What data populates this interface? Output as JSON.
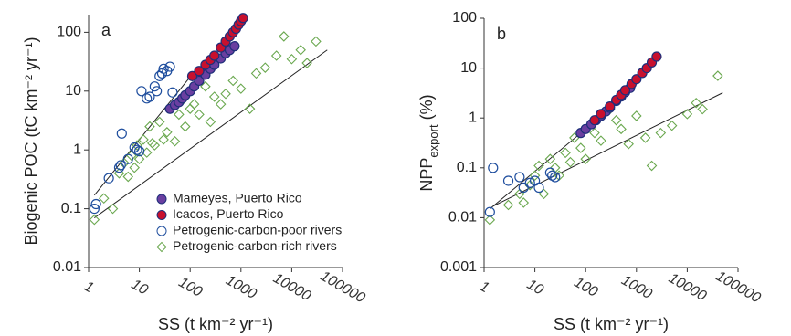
{
  "chart_data": [
    {
      "type": "scatter",
      "panel_label": "a",
      "xlabel": "SS (t km⁻² yr⁻¹)",
      "ylabel": [
        "Biogenic POC (tC km⁻² yr⁻¹)"
      ],
      "xscale": "log",
      "yscale": "log",
      "xlim": [
        1,
        100000
      ],
      "ylim": [
        0.01,
        200
      ],
      "xticks": [
        1,
        10,
        100,
        1000,
        10000,
        100000
      ],
      "yticks": [
        0.01,
        0.1,
        1,
        10,
        100
      ],
      "legend_loc": "lower right",
      "series": [
        {
          "name": "Mameyes, Puerto Rico",
          "color": "#6a3fa0",
          "edge": "#1f2f7a",
          "marker": "filled-circle",
          "x": [
            40,
            50,
            60,
            70,
            80,
            100,
            120,
            150,
            200,
            250,
            300,
            400,
            500,
            600,
            750
          ],
          "values": [
            5,
            5.8,
            6.5,
            7.5,
            8.5,
            10,
            12,
            15,
            19,
            24,
            28,
            36,
            44,
            50,
            58
          ]
        },
        {
          "name": "Icacos, Puerto Rico",
          "color": "#c8102e",
          "edge": "#1f2f7a",
          "marker": "filled-circle",
          "x": [
            110,
            150,
            200,
            250,
            300,
            400,
            500,
            600,
            700,
            800,
            900,
            1000,
            1100
          ],
          "values": [
            18,
            22,
            28,
            34,
            40,
            55,
            70,
            85,
            100,
            115,
            135,
            155,
            175
          ]
        },
        {
          "name": "Petrogenic-carbon-poor rivers",
          "color": "#1f4e9e",
          "marker": "open-circle",
          "x": [
            1.3,
            1.4,
            2.5,
            4,
            4.3,
            4.5,
            6,
            8,
            9,
            10,
            11,
            14,
            16,
            20,
            22,
            25,
            28,
            30,
            35,
            40,
            45
          ],
          "values": [
            0.1,
            0.12,
            0.33,
            0.5,
            0.55,
            1.9,
            0.7,
            1.1,
            1.0,
            0.95,
            10,
            7.5,
            8,
            12,
            10,
            18,
            20,
            24,
            22,
            26,
            9.5
          ]
        },
        {
          "name": "Petrogenic-carbon-rich rivers",
          "color": "#6aa84f",
          "marker": "open-diamond",
          "x": [
            1.3,
            2,
            3,
            4,
            5,
            6,
            7,
            8,
            9,
            10,
            12,
            14,
            16,
            18,
            20,
            25,
            30,
            35,
            40,
            50,
            60,
            70,
            80,
            100,
            120,
            150,
            200,
            250,
            300,
            400,
            500,
            700,
            1000,
            1500,
            2000,
            3000,
            5000,
            7000,
            10000,
            15000,
            20000,
            30000
          ],
          "values": [
            0.065,
            0.15,
            0.1,
            0.4,
            0.6,
            0.35,
            0.8,
            0.5,
            1.2,
            0.7,
            1.5,
            0.9,
            2.5,
            1.3,
            1.2,
            3,
            1.5,
            2,
            5,
            1.4,
            4,
            7,
            2.5,
            5,
            6,
            4,
            12,
            3,
            8,
            6,
            9,
            15,
            11,
            5,
            20,
            25,
            40,
            85,
            35,
            50,
            30,
            70
          ]
        }
      ],
      "fit_lines": [
        {
          "x": [
            1.3,
            140
          ],
          "values": [
            0.17,
            25
          ]
        },
        {
          "x": [
            1.3,
            50000
          ],
          "values": [
            0.07,
            50
          ]
        }
      ]
    },
    {
      "type": "scatter",
      "panel_label": "b",
      "xlabel": "SS (t km⁻² yr⁻¹)",
      "ylabel": [
        "NPP",
        "export",
        " (%)"
      ],
      "xscale": "log",
      "yscale": "log",
      "xlim": [
        1,
        100000
      ],
      "ylim": [
        0.001,
        100
      ],
      "xticks": [
        1,
        10,
        100,
        1000,
        10000,
        100000
      ],
      "yticks": [
        0.001,
        0.01,
        0.1,
        1,
        10,
        100
      ],
      "series": [
        {
          "color": "#6a3fa0",
          "edge": "#1f2f7a",
          "marker": "filled-circle",
          "x": [
            80,
            100,
            130,
            160,
            200,
            250,
            300,
            400,
            500,
            600,
            750
          ],
          "values": [
            0.5,
            0.6,
            0.75,
            0.9,
            1.1,
            1.35,
            1.6,
            2.2,
            2.7,
            3.3,
            4
          ]
        },
        {
          "color": "#c8102e",
          "edge": "#1f2f7a",
          "marker": "filled-circle",
          "x": [
            150,
            200,
            300,
            400,
            500,
            600,
            800,
            1000,
            1300,
            1600,
            2000,
            2500
          ],
          "values": [
            0.9,
            1.2,
            1.7,
            2.3,
            2.9,
            3.6,
            4.8,
            6,
            8,
            10,
            13,
            17
          ]
        },
        {
          "color": "#1f4e9e",
          "marker": "open-circle",
          "x": [
            1.3,
            1.5,
            3,
            5,
            6,
            8,
            10,
            12,
            20,
            22,
            25
          ],
          "values": [
            0.013,
            0.1,
            0.055,
            0.065,
            0.04,
            0.05,
            0.055,
            0.04,
            0.08,
            0.07,
            0.065
          ]
        },
        {
          "color": "#6aa84f",
          "marker": "open-diamond",
          "x": [
            1.3,
            3,
            5,
            6,
            8,
            10,
            12,
            15,
            20,
            25,
            30,
            40,
            50,
            60,
            80,
            100,
            150,
            200,
            300,
            400,
            500,
            700,
            1000,
            1500,
            2000,
            3000,
            5000,
            10000,
            15000,
            20000,
            40000
          ],
          "values": [
            0.009,
            0.018,
            0.03,
            0.02,
            0.045,
            0.07,
            0.11,
            0.03,
            0.15,
            0.1,
            0.07,
            0.2,
            0.13,
            0.4,
            0.25,
            0.15,
            0.5,
            0.35,
            1.5,
            0.9,
            0.6,
            0.3,
            1.1,
            0.4,
            0.11,
            0.5,
            0.7,
            1.2,
            2,
            1.5,
            7
          ]
        }
      ],
      "fit_lines": [
        {
          "x": [
            1.3,
            100
          ],
          "values": [
            0.015,
            0.6
          ]
        },
        {
          "x": [
            1.5,
            50000
          ],
          "values": [
            0.017,
            3.2
          ]
        }
      ]
    }
  ]
}
